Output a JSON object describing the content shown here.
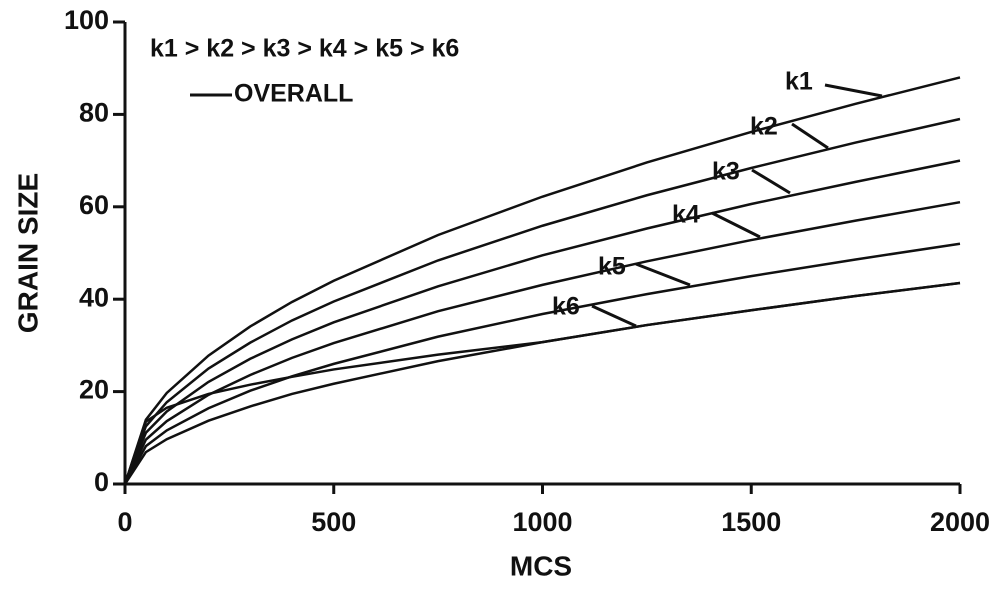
{
  "chart_data": {
    "type": "line",
    "annotation": "k1 > k2 > k3 > k4 > k5 > k6",
    "xlabel": "MCS",
    "ylabel": "GRAIN SIZE",
    "x": [
      0,
      50,
      100,
      200,
      300,
      400,
      500,
      750,
      1000,
      1250,
      1500,
      1750,
      2000
    ],
    "series": [
      {
        "name": "k1",
        "color": "#111111",
        "values": [
          0,
          13.9,
          19.7,
          27.8,
          34.1,
          39.4,
          44,
          53.9,
          62.2,
          69.6,
          76.2,
          82.3,
          88
        ]
      },
      {
        "name": "k2",
        "color": "#111111",
        "values": [
          0,
          12.5,
          17.7,
          25,
          30.6,
          35.4,
          39.5,
          48.4,
          55.9,
          62.5,
          68.4,
          73.9,
          79
        ]
      },
      {
        "name": "k3",
        "color": "#111111",
        "values": [
          0,
          11.1,
          15.7,
          22.1,
          27.1,
          31.3,
          35,
          42.8,
          49.5,
          55.3,
          60.6,
          65.4,
          70
        ]
      },
      {
        "name": "k4",
        "color": "#111111",
        "values": [
          0,
          9.6,
          13.6,
          19.3,
          23.6,
          27.3,
          30.5,
          37.4,
          43.1,
          48.2,
          52.8,
          57,
          61
        ]
      },
      {
        "name": "k5",
        "color": "#111111",
        "values": [
          0,
          8.2,
          11.6,
          16.4,
          20.2,
          23.3,
          26,
          31.9,
          36.8,
          41.1,
          45,
          48.6,
          52
        ]
      },
      {
        "name": "k6",
        "color": "#111111",
        "values": [
          0,
          6.9,
          9.7,
          13.7,
          16.8,
          19.5,
          21.7,
          26.6,
          30.7,
          34.4,
          37.6,
          40.7,
          43.5
        ]
      },
      {
        "name": "OVERALL",
        "color": "#111111",
        "values": [
          0,
          13.5,
          16.5,
          19.5,
          21.5,
          23.2,
          24.8,
          28,
          30.7,
          34.4,
          37.6,
          40.7,
          43.5
        ]
      }
    ],
    "xlim": [
      0,
      2000
    ],
    "xticks": [
      0,
      500,
      1000,
      1500,
      2000
    ],
    "ylim": [
      0,
      100
    ],
    "yticks": [
      0,
      20,
      40,
      60,
      80,
      100
    ],
    "grid": false
  }
}
